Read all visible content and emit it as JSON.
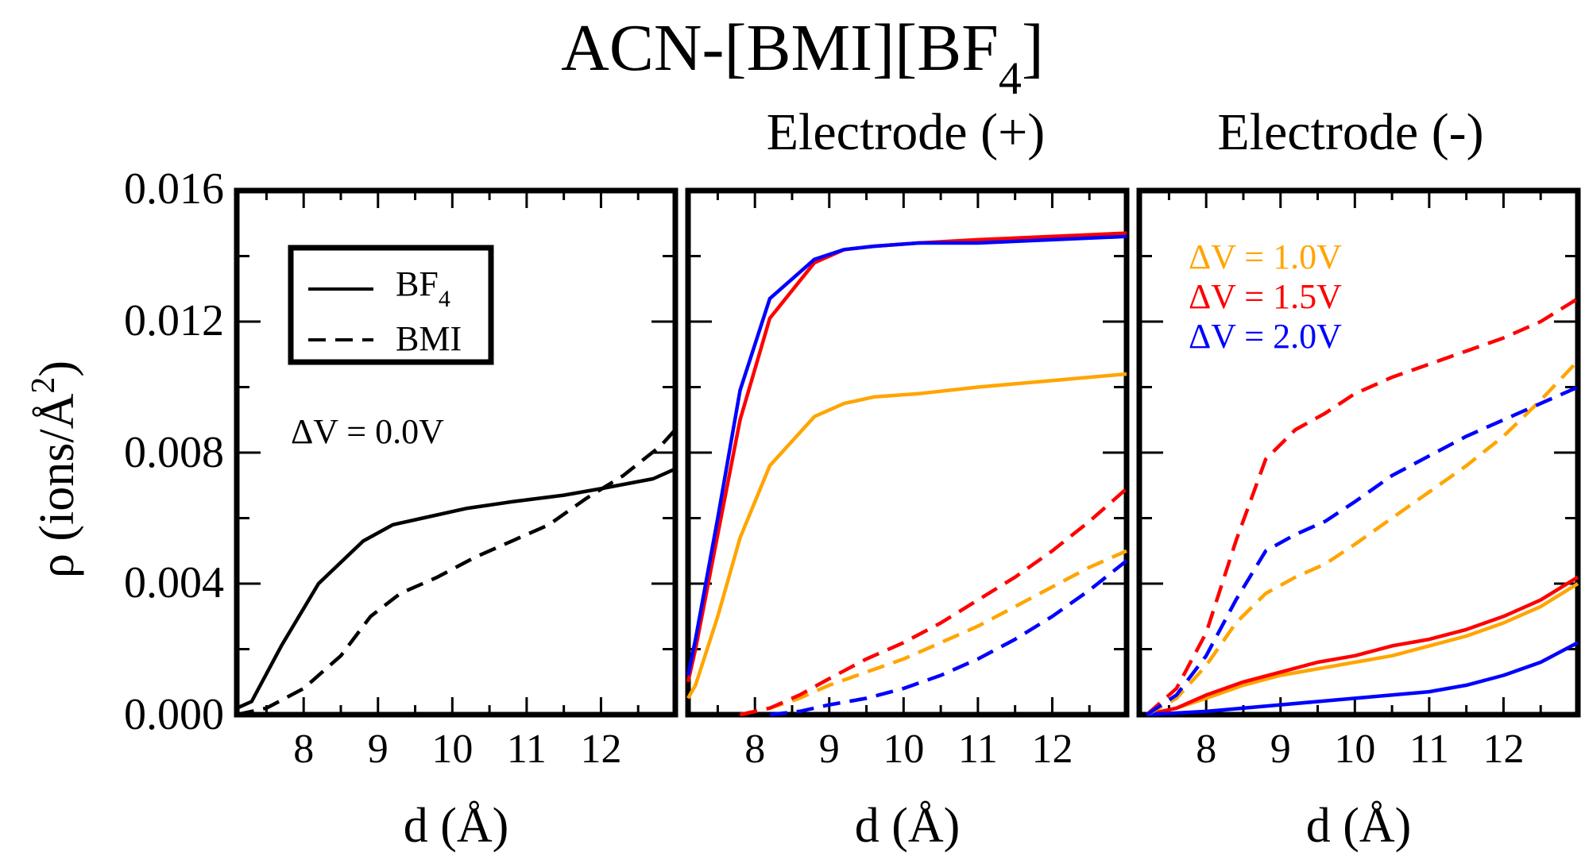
{
  "figure": {
    "title_main": "ACN-[BMI][BF",
    "title_sub": "4",
    "title_close": "]",
    "ylabel": "ρ (ions/Å",
    "ylabel_sup": "2",
    "ylabel_close": ")",
    "legend": {
      "solid_label": "BF",
      "solid_sub": "4",
      "dashed_label": "BMI"
    },
    "colors": {
      "axes": "#000000",
      "dv_0": "#000000",
      "dv_1": "#FFA500",
      "dv_1_5": "#FF0000",
      "dv_2": "#0000FF"
    }
  },
  "chart_data": [
    {
      "type": "line",
      "panel": "left",
      "title": "",
      "xlabel": "d (Å)",
      "ylabel": "ρ (ions/Å²)",
      "xlim": [
        7.1,
        13.0
      ],
      "ylim": [
        0.0,
        0.016
      ],
      "xticks": [
        8,
        9,
        10,
        11,
        12
      ],
      "yticks": [
        "0.000",
        "0.004",
        "0.008",
        "0.012",
        "0.016"
      ],
      "annotation": "ΔV = 0.0V",
      "series": [
        {
          "name": "BF4 ΔV = 0.0V",
          "style": "solid",
          "color": "#000000",
          "x": [
            7.1,
            7.3,
            7.7,
            8.2,
            8.8,
            9.2,
            9.6,
            10.2,
            10.8,
            11.5,
            12.0,
            12.7,
            13.0
          ],
          "y": [
            0.0002,
            0.0004,
            0.0021,
            0.004,
            0.0053,
            0.0058,
            0.006,
            0.0063,
            0.0065,
            0.0067,
            0.0069,
            0.0072,
            0.0075
          ]
        },
        {
          "name": "BMI ΔV = 0.0V",
          "style": "dashed",
          "color": "#000000",
          "x": [
            7.1,
            7.5,
            8.0,
            8.5,
            8.9,
            9.3,
            9.8,
            10.3,
            10.8,
            11.3,
            11.8,
            12.3,
            12.8,
            13.0
          ],
          "y": [
            0.0,
            0.0002,
            0.0008,
            0.0018,
            0.003,
            0.0037,
            0.0042,
            0.0048,
            0.0053,
            0.0058,
            0.0066,
            0.0073,
            0.0082,
            0.0087
          ]
        }
      ]
    },
    {
      "type": "line",
      "panel": "middle",
      "title": "Electrode (+)",
      "xlabel": "d (Å)",
      "ylabel": "",
      "xlim": [
        7.1,
        13.0
      ],
      "ylim": [
        0.0,
        0.016
      ],
      "xticks": [
        8,
        9,
        10,
        11,
        12
      ],
      "series": [
        {
          "name": "BF4 ΔV = 1.0V",
          "style": "solid",
          "color": "#FFA500",
          "x": [
            7.1,
            7.2,
            7.5,
            7.8,
            8.2,
            8.8,
            9.2,
            9.6,
            10.2,
            11.0,
            12.0,
            13.0
          ],
          "y": [
            0.0005,
            0.0009,
            0.003,
            0.0054,
            0.0076,
            0.0091,
            0.0095,
            0.0097,
            0.0098,
            0.01,
            0.0102,
            0.0104
          ]
        },
        {
          "name": "BF4 ΔV = 1.5V",
          "style": "solid",
          "color": "#FF0000",
          "x": [
            7.1,
            7.2,
            7.5,
            7.8,
            8.2,
            8.8,
            9.2,
            9.6,
            10.2,
            11.0,
            12.0,
            13.0
          ],
          "y": [
            0.001,
            0.002,
            0.0055,
            0.009,
            0.0121,
            0.0138,
            0.0142,
            0.0143,
            0.0144,
            0.0145,
            0.0146,
            0.0147
          ]
        },
        {
          "name": "BF4 ΔV = 2.0V",
          "style": "solid",
          "color": "#0000FF",
          "x": [
            7.1,
            7.2,
            7.5,
            7.8,
            8.2,
            8.8,
            9.2,
            9.6,
            10.2,
            11.0,
            12.0,
            13.0
          ],
          "y": [
            0.0012,
            0.0023,
            0.006,
            0.0099,
            0.0127,
            0.0139,
            0.0142,
            0.0143,
            0.0144,
            0.0144,
            0.0145,
            0.0146
          ]
        },
        {
          "name": "BMI ΔV = 1.0V",
          "style": "dashed",
          "color": "#FFA500",
          "x": [
            7.8,
            8.2,
            8.6,
            9.0,
            9.5,
            10.0,
            10.5,
            11.0,
            11.5,
            12.0,
            12.5,
            13.0
          ],
          "y": [
            0.0,
            0.0002,
            0.0005,
            0.0009,
            0.0013,
            0.0017,
            0.0022,
            0.0027,
            0.0033,
            0.0039,
            0.0045,
            0.005
          ]
        },
        {
          "name": "BMI ΔV = 1.5V",
          "style": "dashed",
          "color": "#FF0000",
          "x": [
            7.8,
            8.2,
            8.6,
            9.0,
            9.5,
            10.0,
            10.5,
            11.0,
            11.5,
            12.0,
            12.5,
            13.0
          ],
          "y": [
            0.0,
            0.0002,
            0.0006,
            0.0011,
            0.0017,
            0.0022,
            0.0028,
            0.0035,
            0.0042,
            0.005,
            0.0059,
            0.0069
          ]
        },
        {
          "name": "BMI ΔV = 2.0V",
          "style": "dashed",
          "color": "#0000FF",
          "x": [
            8.2,
            8.6,
            9.0,
            9.5,
            10.0,
            10.5,
            11.0,
            11.5,
            12.0,
            12.5,
            13.0
          ],
          "y": [
            0.0,
            0.0001,
            0.0003,
            0.0005,
            0.0008,
            0.0012,
            0.0017,
            0.0023,
            0.003,
            0.0038,
            0.0047
          ]
        }
      ]
    },
    {
      "type": "line",
      "panel": "right",
      "title": "Electrode (-)",
      "xlabel": "d (Å)",
      "ylabel": "",
      "xlim": [
        7.1,
        13.0
      ],
      "ylim": [
        0.0,
        0.016
      ],
      "xticks": [
        8,
        9,
        10,
        11,
        12
      ],
      "legend": [
        "ΔV = 1.0V",
        "ΔV = 1.5V",
        "ΔV = 2.0V"
      ],
      "series": [
        {
          "name": "BF4 ΔV = 1.0V",
          "style": "solid",
          "color": "#FFA500",
          "x": [
            7.2,
            7.6,
            8.0,
            8.5,
            9.0,
            9.5,
            10.0,
            10.5,
            11.0,
            11.5,
            12.0,
            12.5,
            13.0
          ],
          "y": [
            0.0,
            0.0002,
            0.0005,
            0.0009,
            0.0012,
            0.0014,
            0.0016,
            0.0018,
            0.0021,
            0.0024,
            0.0028,
            0.0033,
            0.004
          ]
        },
        {
          "name": "BF4 ΔV = 1.5V",
          "style": "solid",
          "color": "#FF0000",
          "x": [
            7.2,
            7.6,
            8.0,
            8.5,
            9.0,
            9.5,
            10.0,
            10.5,
            11.0,
            11.5,
            12.0,
            12.5,
            13.0
          ],
          "y": [
            0.0,
            0.0002,
            0.0006,
            0.001,
            0.0013,
            0.0016,
            0.0018,
            0.0021,
            0.0023,
            0.0026,
            0.003,
            0.0035,
            0.0042
          ]
        },
        {
          "name": "BF4 ΔV = 2.0V",
          "style": "solid",
          "color": "#0000FF",
          "x": [
            7.2,
            8.0,
            8.5,
            9.0,
            9.5,
            10.0,
            10.5,
            11.0,
            11.5,
            12.0,
            12.5,
            13.0
          ],
          "y": [
            0.0,
            0.0001,
            0.0002,
            0.0003,
            0.0004,
            0.0005,
            0.0006,
            0.0007,
            0.0009,
            0.0012,
            0.0016,
            0.0022
          ]
        },
        {
          "name": "BMI ΔV = 1.0V",
          "style": "dashed",
          "color": "#FFA500",
          "x": [
            7.2,
            7.6,
            8.0,
            8.4,
            8.8,
            9.2,
            9.6,
            10.0,
            10.5,
            11.0,
            11.5,
            12.0,
            12.5,
            13.0
          ],
          "y": [
            0.0,
            0.0005,
            0.0015,
            0.0028,
            0.0037,
            0.0042,
            0.0046,
            0.0052,
            0.006,
            0.0068,
            0.0076,
            0.0085,
            0.0096,
            0.0108
          ]
        },
        {
          "name": "BMI ΔV = 1.5V",
          "style": "dashed",
          "color": "#FF0000",
          "x": [
            7.2,
            7.6,
            8.0,
            8.4,
            8.8,
            9.2,
            9.6,
            10.0,
            10.5,
            11.0,
            11.5,
            12.0,
            12.5,
            13.0
          ],
          "y": [
            0.0,
            0.0008,
            0.0025,
            0.0053,
            0.0078,
            0.0087,
            0.0092,
            0.0098,
            0.0103,
            0.0107,
            0.0111,
            0.0115,
            0.012,
            0.0127
          ]
        },
        {
          "name": "BMI ΔV = 2.0V",
          "style": "dashed",
          "color": "#0000FF",
          "x": [
            7.2,
            7.6,
            8.0,
            8.4,
            8.8,
            9.2,
            9.6,
            10.0,
            10.5,
            11.0,
            11.5,
            12.0,
            12.5,
            13.0
          ],
          "y": [
            0.0,
            0.0006,
            0.0018,
            0.0035,
            0.005,
            0.0055,
            0.0059,
            0.0065,
            0.0073,
            0.0079,
            0.0085,
            0.009,
            0.0095,
            0.01
          ]
        }
      ]
    }
  ]
}
